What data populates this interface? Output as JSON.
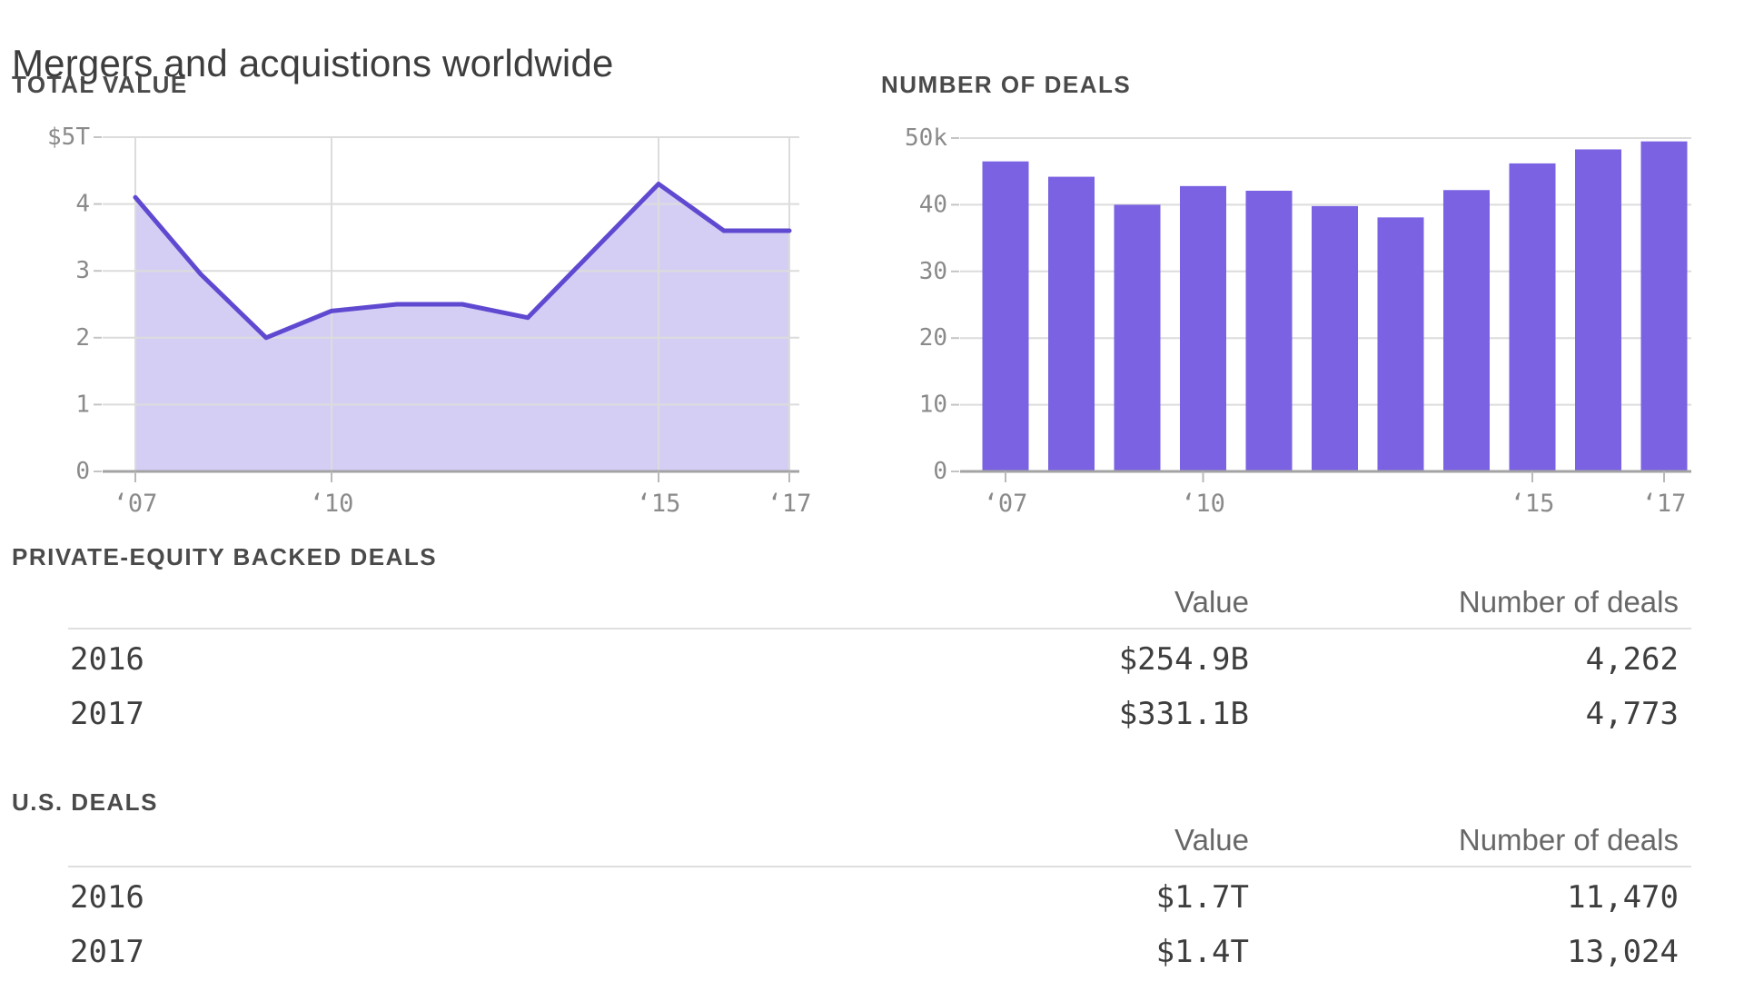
{
  "title": "Mergers and acquistions worldwide",
  "colors": {
    "line_purple": "#6049d1",
    "area_fill": "#d5cef4",
    "bar_purple": "#7a62e2",
    "grid": "#dcdcdc",
    "axis_baseline": "#a3a3a3",
    "axis_label": "#8a8a8a"
  },
  "chart_data": [
    {
      "type": "area",
      "title": "TOTAL VALUE",
      "x": [
        2007,
        2008,
        2009,
        2010,
        2011,
        2012,
        2013,
        2014,
        2015,
        2016,
        2017
      ],
      "values": [
        4.1,
        2.95,
        2.0,
        2.4,
        2.5,
        2.5,
        2.3,
        3.3,
        4.3,
        3.6,
        3.6
      ],
      "unit": "trillion USD",
      "ylim": [
        0,
        5
      ],
      "yticks": {
        "values": [
          0,
          1,
          2,
          3,
          4,
          5
        ],
        "labels": [
          "0",
          "1",
          "2",
          "3",
          "4",
          "$5T"
        ]
      },
      "xticks": {
        "values": [
          2007,
          2010,
          2015,
          2017
        ],
        "labels": [
          "‘07",
          "‘10",
          "‘15",
          "‘17"
        ]
      },
      "grid": "horizontal lines at each $1T; vertical lines at labeled years",
      "legend": "none"
    },
    {
      "type": "bar",
      "title": "NUMBER OF DEALS",
      "x": [
        2007,
        2008,
        2009,
        2010,
        2011,
        2012,
        2013,
        2014,
        2015,
        2016,
        2017
      ],
      "values": [
        46.5,
        44.2,
        40.0,
        42.8,
        42.1,
        39.8,
        38.1,
        42.2,
        46.2,
        48.3,
        49.5
      ],
      "unit": "thousand deals",
      "ylim": [
        0,
        50
      ],
      "yticks": {
        "values": [
          0,
          10,
          20,
          30,
          40,
          50
        ],
        "labels": [
          "0",
          "10",
          "20",
          "30",
          "40",
          "50k"
        ]
      },
      "xticks": {
        "values": [
          2007,
          2010,
          2015,
          2017
        ],
        "labels": [
          "‘07",
          "‘10",
          "‘15",
          "‘17"
        ]
      },
      "grid": "horizontal lines at each 10k",
      "legend": "none"
    }
  ],
  "tables": [
    {
      "title": "PRIVATE-EQUITY BACKED DEALS",
      "columns": [
        "Value",
        "Number of deals"
      ],
      "rows": [
        {
          "year": "2016",
          "value": "$254.9B",
          "deals": "4,262"
        },
        {
          "year": "2017",
          "value": "$331.1B",
          "deals": "4,773"
        }
      ]
    },
    {
      "title": "U.S. DEALS",
      "columns": [
        "Value",
        "Number of deals"
      ],
      "rows": [
        {
          "year": "2016",
          "value": "$1.7T",
          "deals": "11,470"
        },
        {
          "year": "2017",
          "value": "$1.4T",
          "deals": "13,024"
        }
      ]
    }
  ]
}
